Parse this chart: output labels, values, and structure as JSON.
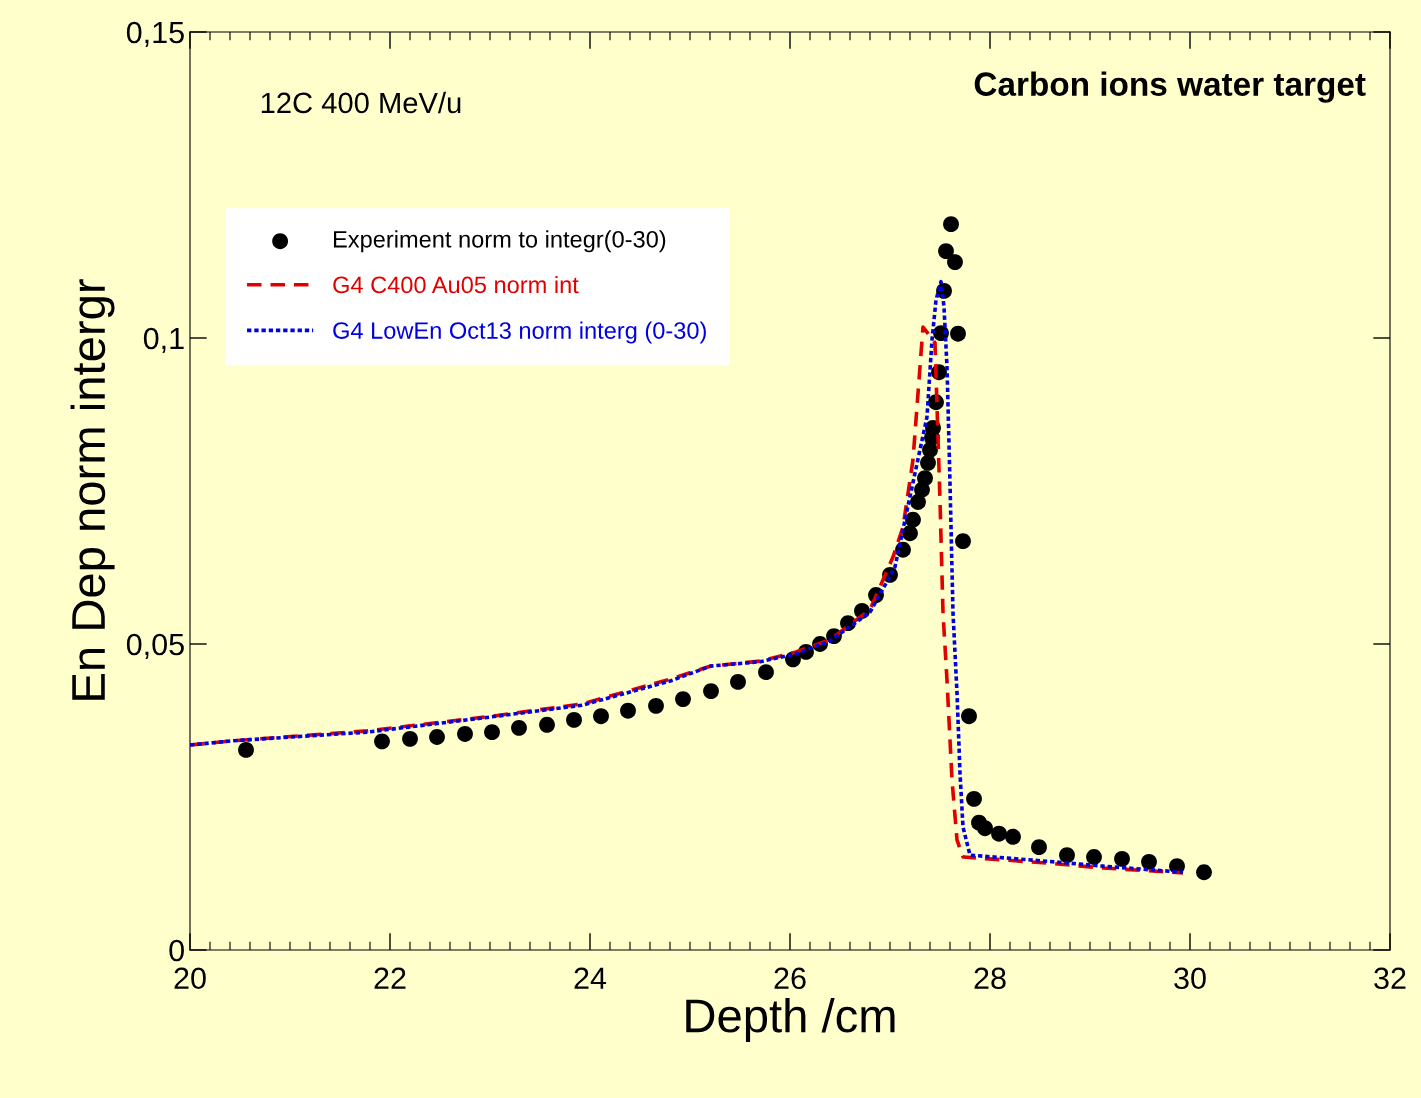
{
  "chart_data": {
    "type": "line",
    "title": "Carbon ions water target",
    "annotations": [
      "12C 400 MeV/u"
    ],
    "xlabel": "Depth /cm",
    "ylabel": "En Dep norm intergr",
    "xlim": [
      20,
      32
    ],
    "xticks": [
      20,
      22,
      24,
      26,
      28,
      30,
      32
    ],
    "ylim": [
      0,
      0.15
    ],
    "yticks": [
      {
        "value": 0,
        "label": "0"
      },
      {
        "value": 0.05,
        "label": "0,05"
      },
      {
        "value": 0.1,
        "label": "0,1"
      },
      {
        "value": 0.15,
        "label": "0,15"
      }
    ],
    "grid": false,
    "legend": "top left",
    "series": [
      {
        "name": "Experiment norm to integr(0-30)",
        "type": "scatter",
        "marker": "circle",
        "color": "#000000",
        "x": [
          20.56,
          21.92,
          22.2,
          22.47,
          22.75,
          23.02,
          23.29,
          23.57,
          23.84,
          24.11,
          24.38,
          24.66,
          24.93,
          25.21,
          25.48,
          25.76,
          26.03,
          26.16,
          26.3,
          26.44,
          26.58,
          26.72,
          26.86,
          27.0,
          27.13,
          27.2,
          27.23,
          27.28,
          27.32,
          27.35,
          27.38,
          27.4,
          27.42,
          27.43,
          27.46,
          27.49,
          27.51,
          27.54,
          27.56,
          27.61,
          27.65,
          27.68,
          27.73,
          27.79,
          27.84,
          27.89,
          27.95,
          28.09,
          28.23,
          28.49,
          28.77,
          29.04,
          29.32,
          29.59,
          29.87,
          30.14
        ],
        "values": [
          0.0327,
          0.0341,
          0.0345,
          0.0348,
          0.0353,
          0.0356,
          0.0363,
          0.0368,
          0.0376,
          0.0382,
          0.0391,
          0.0399,
          0.041,
          0.0423,
          0.0438,
          0.0454,
          0.0475,
          0.0487,
          0.05,
          0.0513,
          0.0534,
          0.0554,
          0.058,
          0.0613,
          0.0654,
          0.0681,
          0.0703,
          0.0732,
          0.0752,
          0.0771,
          0.0796,
          0.0817,
          0.0837,
          0.0853,
          0.0895,
          0.0944,
          0.1008,
          0.1077,
          0.1142,
          0.1186,
          0.1124,
          0.1007,
          0.0668,
          0.0382,
          0.0247,
          0.0208,
          0.0199,
          0.019,
          0.0185,
          0.0168,
          0.0155,
          0.0152,
          0.0149,
          0.0144,
          0.0137,
          0.0127
        ]
      },
      {
        "name": "G4 C400 Au05 norm int",
        "line_style": "dashed",
        "color": "#e00000",
        "x": [
          20.0,
          20.44,
          21.77,
          23.02,
          23.92,
          24.81,
          25.21,
          25.7,
          26.06,
          26.4,
          26.8,
          27.03,
          27.13,
          27.23,
          27.33,
          27.45,
          27.5,
          27.53,
          27.57,
          27.62,
          27.67,
          27.73,
          28.57,
          29.13,
          29.93
        ],
        "values": [
          0.0335,
          0.0342,
          0.0358,
          0.0382,
          0.0402,
          0.0443,
          0.0464,
          0.0472,
          0.0487,
          0.0507,
          0.0556,
          0.0642,
          0.0691,
          0.0801,
          0.1018,
          0.0992,
          0.0735,
          0.0551,
          0.0441,
          0.0278,
          0.018,
          0.0152,
          0.0142,
          0.0134,
          0.0126
        ]
      },
      {
        "name": "G4 LowEn Oct13 norm interg (0-30)",
        "line_style": "dotted",
        "color": "#0000e0",
        "x": [
          20.0,
          20.44,
          21.77,
          23.02,
          23.92,
          24.81,
          25.21,
          25.7,
          26.06,
          26.4,
          26.8,
          27.05,
          27.37,
          27.42,
          27.46,
          27.51,
          27.54,
          27.57,
          27.6,
          27.63,
          27.67,
          27.7,
          27.73,
          27.8,
          28.57,
          29.13,
          29.93
        ],
        "values": [
          0.0335,
          0.0342,
          0.0356,
          0.0381,
          0.04,
          0.044,
          0.0464,
          0.0471,
          0.0484,
          0.0505,
          0.0552,
          0.0626,
          0.0871,
          0.0997,
          0.1062,
          0.1092,
          0.1051,
          0.0953,
          0.0763,
          0.0551,
          0.042,
          0.0289,
          0.0201,
          0.0155,
          0.0145,
          0.0137,
          0.0127
        ]
      }
    ]
  }
}
